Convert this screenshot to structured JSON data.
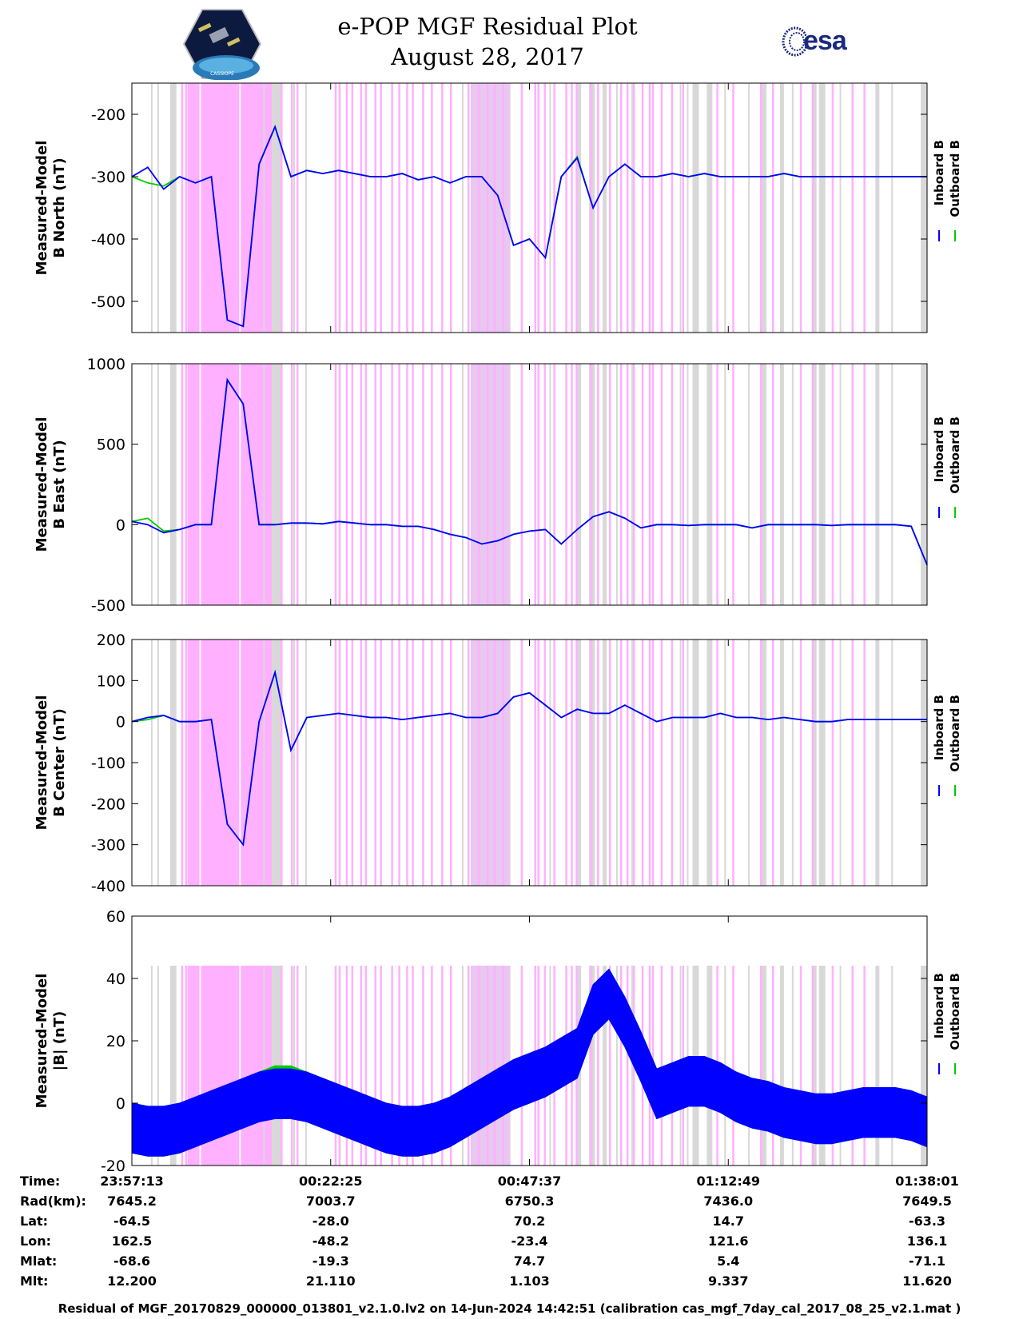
{
  "header": {
    "title_line1": "e-POP MGF Residual Plot",
    "title_line2": "August 28, 2017",
    "logo_left": "CASSIOPE",
    "logo_right": "esa"
  },
  "legend": {
    "inboard": "Inboard B",
    "outboard": "Outboard B"
  },
  "colors": {
    "inboard": "#0000ff",
    "outboard": "#00cc00",
    "magenta_band": "#ffb0ff",
    "gray_band": "#d8d8d8"
  },
  "chart_data": [
    {
      "type": "line",
      "title": "",
      "ylabel_line1": "Measured-Model",
      "ylabel_line2": "B North (nT)",
      "ylim": [
        -550,
        -150
      ],
      "yticks": [
        -500,
        -400,
        -300,
        -200
      ],
      "ytick_labels": [
        "-500",
        "-400",
        "-300",
        "-200"
      ],
      "x": [
        0,
        2,
        4,
        6,
        8,
        10,
        12,
        14,
        16,
        18,
        20,
        22,
        24,
        26,
        28,
        30,
        32,
        34,
        36,
        38,
        40,
        42,
        44,
        46,
        48,
        50,
        52,
        54,
        56,
        58,
        60,
        62,
        64,
        66,
        68,
        70,
        72,
        74,
        76,
        78,
        80,
        82,
        84,
        86,
        88,
        90,
        92,
        94,
        96,
        98,
        100
      ],
      "series": [
        {
          "name": "Inboard B",
          "values": [
            -300,
            -285,
            -320,
            -300,
            -310,
            -300,
            -530,
            -540,
            -280,
            -220,
            -300,
            -290,
            -295,
            -290,
            -295,
            -300,
            -300,
            -295,
            -305,
            -300,
            -310,
            -300,
            -300,
            -330,
            -410,
            -400,
            -430,
            -300,
            -270,
            -350,
            -300,
            -280,
            -300,
            -300,
            -295,
            -300,
            -295,
            -300,
            -300,
            -300,
            -300,
            -295,
            -300,
            -300,
            -300,
            -300,
            -300,
            -300,
            -300,
            -300,
            -300
          ]
        },
        {
          "name": "Outboard B",
          "values": [
            -300,
            -310,
            -315,
            -300,
            -310,
            -300,
            -530,
            -540,
            -280,
            -220,
            -300,
            -290,
            -295,
            -290,
            -295,
            -300,
            -300,
            -295,
            -305,
            -300,
            -310,
            -300,
            -300,
            -330,
            -410,
            -400,
            -430,
            -300,
            -268,
            -350,
            -300,
            -280,
            -300,
            -300,
            -295,
            -300,
            -295,
            -300,
            -300,
            -300,
            -300,
            -295,
            -300,
            -300,
            -300,
            -300,
            -300,
            -300,
            -300,
            -300,
            -300
          ]
        }
      ]
    },
    {
      "type": "line",
      "title": "",
      "ylabel_line1": "Measured-Model",
      "ylabel_line2": "B East (nT)",
      "ylim": [
        -500,
        1000
      ],
      "yticks": [
        -500,
        0,
        500,
        1000
      ],
      "ytick_labels": [
        "-500",
        "0",
        "500",
        "1000"
      ],
      "x": [
        0,
        2,
        4,
        6,
        8,
        10,
        12,
        14,
        16,
        18,
        20,
        22,
        24,
        26,
        28,
        30,
        32,
        34,
        36,
        38,
        40,
        42,
        44,
        46,
        48,
        50,
        52,
        54,
        56,
        58,
        60,
        62,
        64,
        66,
        68,
        70,
        72,
        74,
        76,
        78,
        80,
        82,
        84,
        86,
        88,
        90,
        92,
        94,
        96,
        98,
        100
      ],
      "series": [
        {
          "name": "Inboard B",
          "values": [
            20,
            0,
            -50,
            -30,
            0,
            0,
            900,
            750,
            0,
            0,
            10,
            10,
            5,
            20,
            10,
            0,
            0,
            -10,
            -10,
            -30,
            -60,
            -80,
            -120,
            -100,
            -60,
            -40,
            -30,
            -120,
            -30,
            50,
            80,
            40,
            -20,
            0,
            0,
            -5,
            0,
            0,
            0,
            -20,
            0,
            0,
            0,
            0,
            -5,
            0,
            0,
            0,
            0,
            -10,
            -250
          ]
        },
        {
          "name": "Outboard B",
          "values": [
            20,
            40,
            -40,
            -30,
            0,
            0,
            900,
            750,
            0,
            0,
            10,
            10,
            5,
            20,
            10,
            0,
            0,
            -10,
            -10,
            -30,
            -60,
            -80,
            -120,
            -100,
            -60,
            -40,
            -30,
            -120,
            -30,
            50,
            80,
            40,
            -20,
            0,
            0,
            -5,
            0,
            0,
            0,
            -20,
            0,
            0,
            0,
            0,
            -5,
            0,
            0,
            0,
            0,
            -10,
            -250
          ]
        }
      ]
    },
    {
      "type": "line",
      "title": "",
      "ylabel_line1": "Measured-Model",
      "ylabel_line2": "B Center (nT)",
      "ylim": [
        -400,
        200
      ],
      "yticks": [
        -400,
        -300,
        -200,
        -100,
        0,
        100,
        200
      ],
      "ytick_labels": [
        "-400",
        "-300",
        "-200",
        "-100",
        "0",
        "100",
        "200"
      ],
      "x": [
        0,
        2,
        4,
        6,
        8,
        10,
        12,
        14,
        16,
        18,
        20,
        22,
        24,
        26,
        28,
        30,
        32,
        34,
        36,
        38,
        40,
        42,
        44,
        46,
        48,
        50,
        52,
        54,
        56,
        58,
        60,
        62,
        64,
        66,
        68,
        70,
        72,
        74,
        76,
        78,
        80,
        82,
        84,
        86,
        88,
        90,
        92,
        94,
        96,
        98,
        100
      ],
      "series": [
        {
          "name": "Inboard B",
          "values": [
            0,
            10,
            15,
            0,
            0,
            5,
            -250,
            -300,
            0,
            120,
            -70,
            10,
            15,
            20,
            15,
            10,
            10,
            5,
            10,
            15,
            20,
            10,
            10,
            20,
            60,
            70,
            40,
            10,
            30,
            20,
            20,
            40,
            20,
            0,
            10,
            10,
            10,
            20,
            10,
            10,
            5,
            10,
            5,
            0,
            0,
            5,
            5,
            5,
            5,
            5,
            5
          ]
        },
        {
          "name": "Outboard B",
          "values": [
            0,
            5,
            15,
            0,
            0,
            5,
            -250,
            -300,
            0,
            120,
            -70,
            10,
            15,
            20,
            15,
            10,
            10,
            5,
            10,
            15,
            20,
            10,
            10,
            20,
            60,
            70,
            40,
            10,
            30,
            20,
            20,
            40,
            20,
            0,
            10,
            10,
            10,
            20,
            10,
            10,
            5,
            10,
            5,
            0,
            0,
            5,
            5,
            5,
            5,
            5,
            5
          ]
        }
      ]
    },
    {
      "type": "line",
      "title": "",
      "ylabel_line1": "Measured-Model",
      "ylabel_line2": "|B| (nT)",
      "ylim": [
        -20,
        60
      ],
      "yticks": [
        -20,
        0,
        20,
        40,
        60
      ],
      "ytick_labels": [
        "-20",
        "0",
        "20",
        "40",
        "60"
      ],
      "x": [
        0,
        2,
        4,
        6,
        8,
        10,
        12,
        14,
        16,
        18,
        20,
        22,
        24,
        26,
        28,
        30,
        32,
        34,
        36,
        38,
        40,
        42,
        44,
        46,
        48,
        50,
        52,
        54,
        56,
        58,
        60,
        62,
        64,
        66,
        68,
        70,
        72,
        74,
        76,
        78,
        80,
        82,
        84,
        86,
        88,
        90,
        92,
        94,
        96,
        98,
        100
      ],
      "band_halfwidth": 8,
      "series": [
        {
          "name": "Inboard B",
          "values": [
            -8,
            -9,
            -9,
            -8,
            -6,
            -4,
            -2,
            0,
            2,
            3,
            3,
            2,
            0,
            -2,
            -4,
            -6,
            -8,
            -9,
            -9,
            -8,
            -6,
            -3,
            0,
            3,
            6,
            8,
            10,
            13,
            16,
            30,
            35,
            26,
            15,
            3,
            5,
            7,
            7,
            5,
            2,
            0,
            -1,
            -3,
            -4,
            -5,
            -5,
            -4,
            -3,
            -3,
            -3,
            -4,
            -6
          ]
        },
        {
          "name": "Outboard B",
          "values": [
            -8,
            -9,
            -9,
            -8,
            -6,
            -4,
            -2,
            0,
            2,
            4,
            4,
            2,
            0,
            -2,
            -4,
            -6,
            -8,
            -9,
            -9,
            -8,
            -6,
            -3,
            0,
            3,
            6,
            8,
            10,
            13,
            16,
            30,
            35,
            26,
            15,
            3,
            5,
            7,
            7,
            5,
            2,
            0,
            -1,
            -3,
            -4,
            -5,
            -5,
            -4,
            -3,
            -3,
            -3,
            -4,
            -6
          ]
        }
      ]
    }
  ],
  "band_data": {
    "magenta_spans": [
      [
        7.0,
        17.6
      ]
    ],
    "magenta_lines": [
      6.2,
      6.7,
      18.7,
      20.0,
      20.7,
      25.5,
      26.0,
      26.9,
      27.6,
      28.7,
      29.3,
      30.5,
      31.2,
      32.6,
      33.5,
      34.5,
      35.2,
      36.5,
      37.6,
      38.9,
      40.0,
      42.2,
      43.5,
      44.6,
      45.5,
      46.6,
      48.9,
      50.6,
      51.0,
      51.8,
      53.0,
      54.5,
      55.2,
      55.8,
      57.6,
      58.5,
      60.0,
      61.4,
      62.2,
      63.0,
      64.1,
      65.0,
      65.4,
      66.5,
      67.8,
      69.2,
      73.5,
      75.5,
      79.0,
      80.5,
      84.0,
      85.5,
      88.0,
      90.5,
      92.0
    ],
    "magenta_blocks": [
      [
        42.6,
        47.6
      ]
    ],
    "gray_spans": [
      [
        4.8,
        5.6
      ],
      [
        17.6,
        18.7
      ],
      [
        56.0,
        56.5
      ],
      [
        57.5,
        58.2
      ],
      [
        59.2,
        59.7
      ],
      [
        70.5,
        71.3
      ],
      [
        72.3,
        73.0
      ],
      [
        79.0,
        79.8
      ],
      [
        81.5,
        82.0
      ],
      [
        85.5,
        86.1
      ],
      [
        86.4,
        87.2
      ],
      [
        93.5,
        94.0
      ],
      [
        99.2,
        100
      ]
    ],
    "gray_lines": [
      2.4,
      3.2,
      16.5,
      20.3,
      21.8,
      41.5,
      52.5,
      60.9,
      62.8,
      68.9,
      69.8,
      74.5,
      77.5,
      83.0,
      89.0,
      95.5
    ]
  },
  "time_table": {
    "row_labels": [
      "Time:",
      "Rad(km):",
      "Lat:",
      "Lon:",
      "Mlat:",
      "Mlt:"
    ],
    "columns": [
      [
        "23:57:13",
        "7645.2",
        "-64.5",
        "162.5",
        "-68.6",
        "12.200"
      ],
      [
        "00:22:25",
        "7003.7",
        "-28.0",
        "-48.2",
        "-19.3",
        "21.110"
      ],
      [
        "00:47:37",
        "6750.3",
        "70.2",
        "-23.4",
        "74.7",
        "1.103"
      ],
      [
        "01:12:49",
        "7436.0",
        "14.7",
        "121.6",
        "5.4",
        "9.337"
      ],
      [
        "01:38:01",
        "7649.5",
        "-63.3",
        "136.1",
        "-71.1",
        "11.620"
      ]
    ]
  },
  "footer": "Residual of MGF_20170829_000000_013801_v2.1.0.lv2 on 14-Jun-2024 14:42:51 (calibration cas_mgf_7day_cal_2017_08_25_v2.1.mat )"
}
